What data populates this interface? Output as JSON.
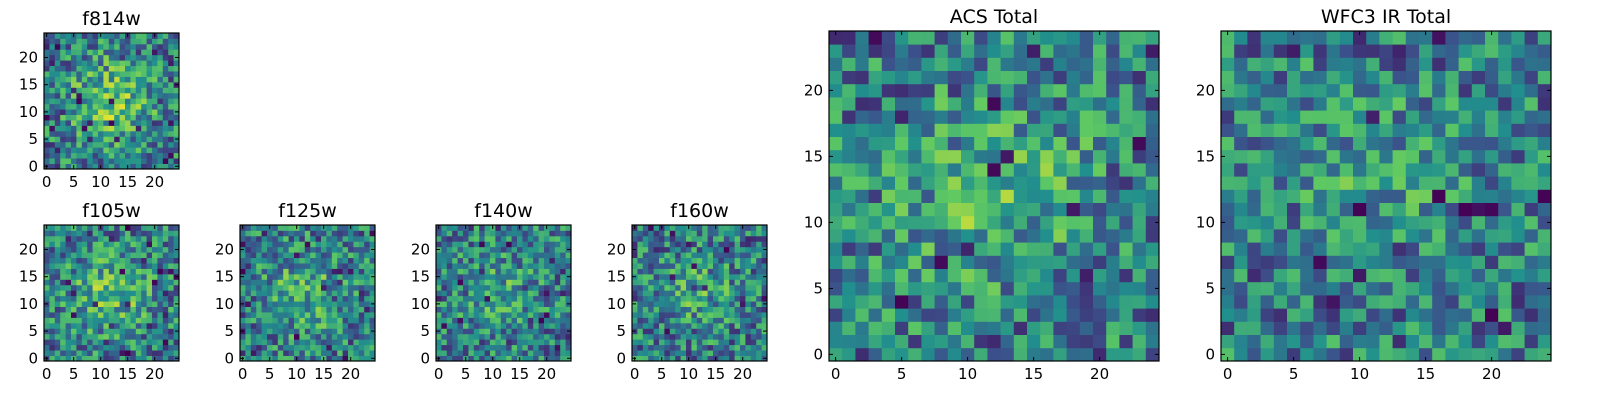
{
  "chart_data": [
    {
      "type": "heatmap",
      "title": "f814w",
      "grid_size": 25,
      "seed": 814,
      "center_boost": 0.85,
      "xticks": [
        0,
        5,
        10,
        15,
        20
      ],
      "yticks": [
        0,
        5,
        10,
        15,
        20
      ],
      "colormap": "viridis",
      "grid": false,
      "legend": ""
    },
    {
      "type": "heatmap",
      "title": "f105w",
      "grid_size": 25,
      "seed": 105,
      "center_boost": 0.7,
      "xticks": [
        0,
        5,
        10,
        15,
        20
      ],
      "yticks": [
        0,
        5,
        10,
        15,
        20
      ],
      "colormap": "viridis",
      "grid": false,
      "legend": ""
    },
    {
      "type": "heatmap",
      "title": "f125w",
      "grid_size": 25,
      "seed": 125,
      "center_boost": 0.55,
      "xticks": [
        0,
        5,
        10,
        15,
        20
      ],
      "yticks": [
        0,
        5,
        10,
        15,
        20
      ],
      "colormap": "viridis",
      "grid": false,
      "legend": ""
    },
    {
      "type": "heatmap",
      "title": "f140w",
      "grid_size": 25,
      "seed": 140,
      "center_boost": 0.45,
      "xticks": [
        0,
        5,
        10,
        15,
        20
      ],
      "yticks": [
        0,
        5,
        10,
        15,
        20
      ],
      "colormap": "viridis",
      "grid": false,
      "legend": ""
    },
    {
      "type": "heatmap",
      "title": "f160w",
      "grid_size": 25,
      "seed": 160,
      "center_boost": 0.4,
      "xticks": [
        0,
        5,
        10,
        15,
        20
      ],
      "yticks": [
        0,
        5,
        10,
        15,
        20
      ],
      "colormap": "viridis",
      "grid": false,
      "legend": ""
    },
    {
      "type": "heatmap",
      "title": "ACS Total",
      "grid_size": 25,
      "seed": 1000,
      "center_boost": 0.6,
      "xticks": [
        0,
        5,
        10,
        15,
        20
      ],
      "yticks": [
        0,
        5,
        10,
        15,
        20
      ],
      "colormap": "viridis",
      "grid": false,
      "legend": ""
    },
    {
      "type": "heatmap",
      "title": "WFC3 IR Total",
      "grid_size": 25,
      "seed": 2000,
      "center_boost": 0.35,
      "xticks": [
        0,
        5,
        10,
        15,
        20
      ],
      "yticks": [
        0,
        5,
        10,
        15,
        20
      ],
      "colormap": "viridis",
      "grid": false,
      "legend": ""
    }
  ]
}
